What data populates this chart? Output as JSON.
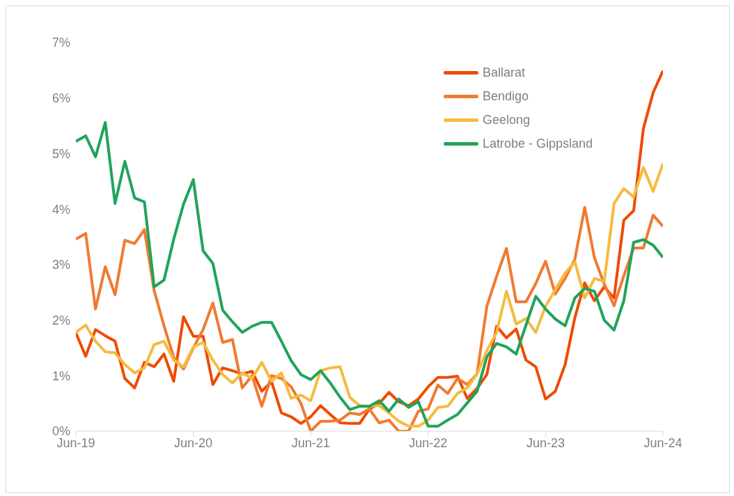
{
  "chart_data": {
    "type": "line",
    "categories": [
      "Jun-19",
      null,
      null,
      null,
      null,
      null,
      null,
      null,
      null,
      null,
      null,
      null,
      "Jun-20",
      null,
      null,
      null,
      null,
      null,
      null,
      null,
      null,
      null,
      null,
      null,
      "Jun-21",
      null,
      null,
      null,
      null,
      null,
      null,
      null,
      null,
      null,
      null,
      null,
      "Jun-22",
      null,
      null,
      null,
      null,
      null,
      null,
      null,
      null,
      null,
      null,
      null,
      "Jun-23",
      null,
      null,
      null,
      null,
      null,
      null,
      null,
      null,
      null,
      null,
      null,
      "Jun-24"
    ],
    "series": [
      {
        "name": "Ballarat",
        "color": "#f04a00",
        "values": [
          1.77,
          1.35,
          1.83,
          1.72,
          1.62,
          0.95,
          0.78,
          1.24,
          1.16,
          1.39,
          0.9,
          2.06,
          1.71,
          1.71,
          0.84,
          1.14,
          1.09,
          1.03,
          1.08,
          0.72,
          0.89,
          0.33,
          0.26,
          0.14,
          0.26,
          0.46,
          0.3,
          0.15,
          0.14,
          0.14,
          0.4,
          0.5,
          0.7,
          0.53,
          0.46,
          0.58,
          0.8,
          0.97,
          0.97,
          0.99,
          0.59,
          0.77,
          1.02,
          1.89,
          1.68,
          1.84,
          1.28,
          1.16,
          0.58,
          0.72,
          1.2,
          2.05,
          2.67,
          2.35,
          2.6,
          2.4,
          3.8,
          3.97,
          5.45,
          6.1,
          6.49
        ]
      },
      {
        "name": "Bendigo",
        "color": "#f07a30",
        "values": [
          3.46,
          3.56,
          2.2,
          2.96,
          2.46,
          3.44,
          3.38,
          3.63,
          2.53,
          1.9,
          1.33,
          1.12,
          1.5,
          1.83,
          2.31,
          1.6,
          1.65,
          0.78,
          1.0,
          0.45,
          1.0,
          0.95,
          0.8,
          0.5,
          0.0,
          0.18,
          0.18,
          0.2,
          0.33,
          0.3,
          0.4,
          0.15,
          0.2,
          0.0,
          0.0,
          0.36,
          0.4,
          0.83,
          0.68,
          0.95,
          0.84,
          1.03,
          2.25,
          2.79,
          3.29,
          2.33,
          2.33,
          2.66,
          3.06,
          2.47,
          2.75,
          3.1,
          4.03,
          3.12,
          2.65,
          2.26,
          2.8,
          3.3,
          3.3,
          3.89,
          3.69
        ]
      },
      {
        "name": "Geelong",
        "color": "#f5bb40",
        "values": [
          1.78,
          1.91,
          1.62,
          1.43,
          1.41,
          1.2,
          1.05,
          1.14,
          1.56,
          1.62,
          1.28,
          1.16,
          1.52,
          1.6,
          1.28,
          1.02,
          0.87,
          1.05,
          0.95,
          1.24,
          0.9,
          1.05,
          0.59,
          0.65,
          0.55,
          1.09,
          1.14,
          1.16,
          0.61,
          0.46,
          0.45,
          0.46,
          0.33,
          0.18,
          0.09,
          0.09,
          0.2,
          0.43,
          0.45,
          0.68,
          0.78,
          1.03,
          1.45,
          1.78,
          2.52,
          1.93,
          2.03,
          1.78,
          2.25,
          2.55,
          2.85,
          3.05,
          2.4,
          2.75,
          2.7,
          4.1,
          4.37,
          4.22,
          4.75,
          4.32,
          4.82
        ]
      },
      {
        "name": "Latrobe - Gippsland",
        "color": "#21a35a",
        "values": [
          5.22,
          5.32,
          4.94,
          5.56,
          4.1,
          4.86,
          4.2,
          4.13,
          2.6,
          2.72,
          3.46,
          4.09,
          4.53,
          3.25,
          3.02,
          2.18,
          1.97,
          1.78,
          1.89,
          1.96,
          1.96,
          1.62,
          1.27,
          1.02,
          0.93,
          1.09,
          0.87,
          0.61,
          0.39,
          0.45,
          0.45,
          0.55,
          0.36,
          0.58,
          0.43,
          0.53,
          0.09,
          0.09,
          0.2,
          0.3,
          0.51,
          0.72,
          1.34,
          1.58,
          1.52,
          1.39,
          1.91,
          2.43,
          2.2,
          2.02,
          1.9,
          2.4,
          2.57,
          2.52,
          2.0,
          1.82,
          2.35,
          3.4,
          3.45,
          3.35,
          3.13
        ]
      }
    ],
    "ylim": [
      0,
      7
    ],
    "yticks": [
      {
        "value": 0,
        "label": "0%"
      },
      {
        "value": 1,
        "label": "1%"
      },
      {
        "value": 2,
        "label": "2%"
      },
      {
        "value": 3,
        "label": "3%"
      },
      {
        "value": 4,
        "label": "4%"
      },
      {
        "value": 5,
        "label": "5%"
      },
      {
        "value": 6,
        "label": "6%"
      },
      {
        "value": 7,
        "label": "7%"
      }
    ],
    "grid": false,
    "legend": "top right"
  }
}
